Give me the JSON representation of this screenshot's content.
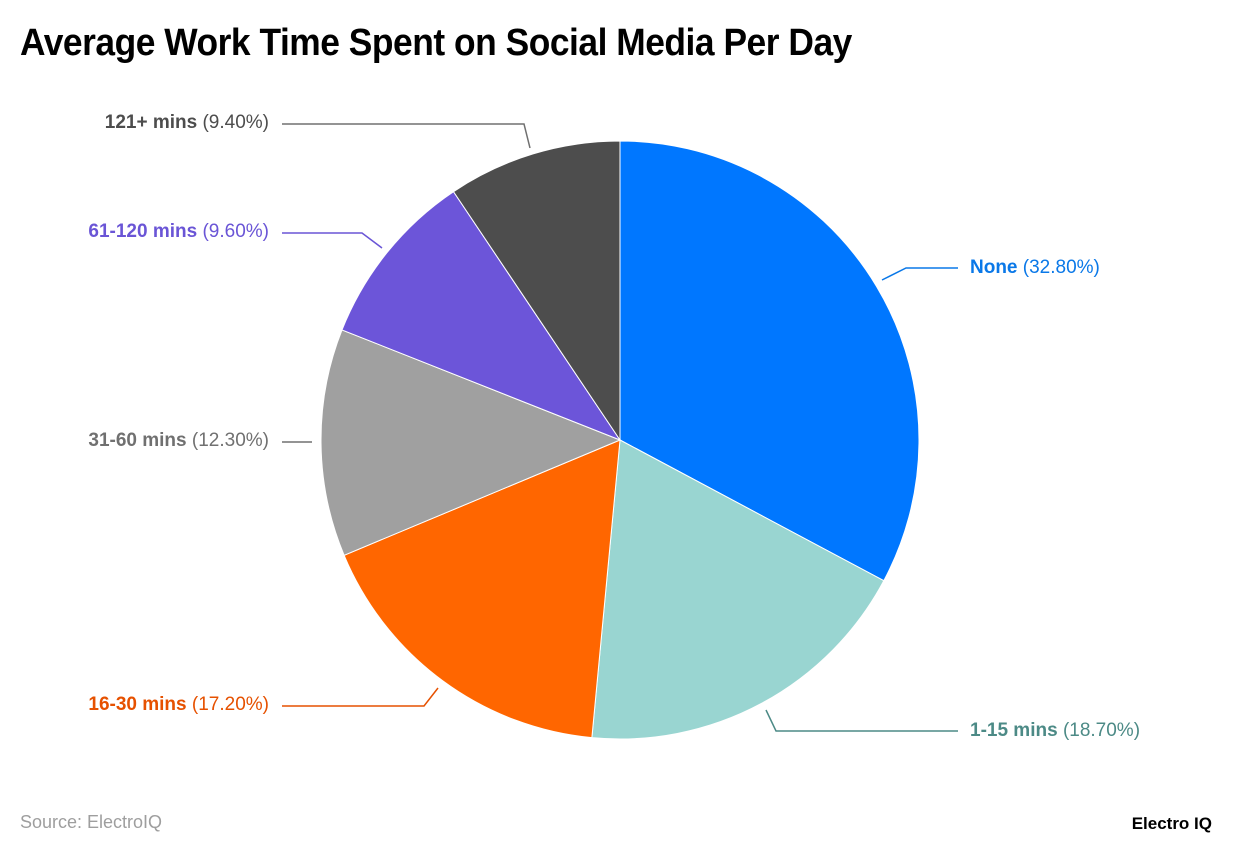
{
  "title": "Average Work Time Spent on Social Media Per Day",
  "source": "Source: ElectroIQ",
  "brand": "Electro IQ",
  "chart_data": {
    "type": "pie",
    "title": "Average Work Time Spent on Social Media Per Day",
    "categories": [
      "None",
      "1-15 mins",
      "16-30 mins",
      "31-60 mins",
      "61-120 mins",
      "121+ mins"
    ],
    "values": [
      32.8,
      18.7,
      17.2,
      12.3,
      9.6,
      9.4
    ],
    "colors": [
      "#0077ff",
      "#99d5d1",
      "#ff6600",
      "#a0a0a0",
      "#6c55d9",
      "#4d4d4d"
    ],
    "label_colors": [
      "#0a78e8",
      "#4c8a86",
      "#e65100",
      "#707070",
      "#6a55d6",
      "#4d4d4d"
    ],
    "start_angle": "12 o'clock",
    "direction": "clockwise",
    "legend": "none (callout labels)"
  },
  "labels": [
    {
      "name": "None",
      "pct": "(32.80%)"
    },
    {
      "name": "1-15 mins",
      "pct": "(18.70%)"
    },
    {
      "name": "16-30 mins",
      "pct": "(17.20%)"
    },
    {
      "name": "31-60 mins",
      "pct": "(12.30%)"
    },
    {
      "name": "61-120 mins",
      "pct": "(9.60%)"
    },
    {
      "name": "121+ mins",
      "pct": "(9.40%)"
    }
  ]
}
